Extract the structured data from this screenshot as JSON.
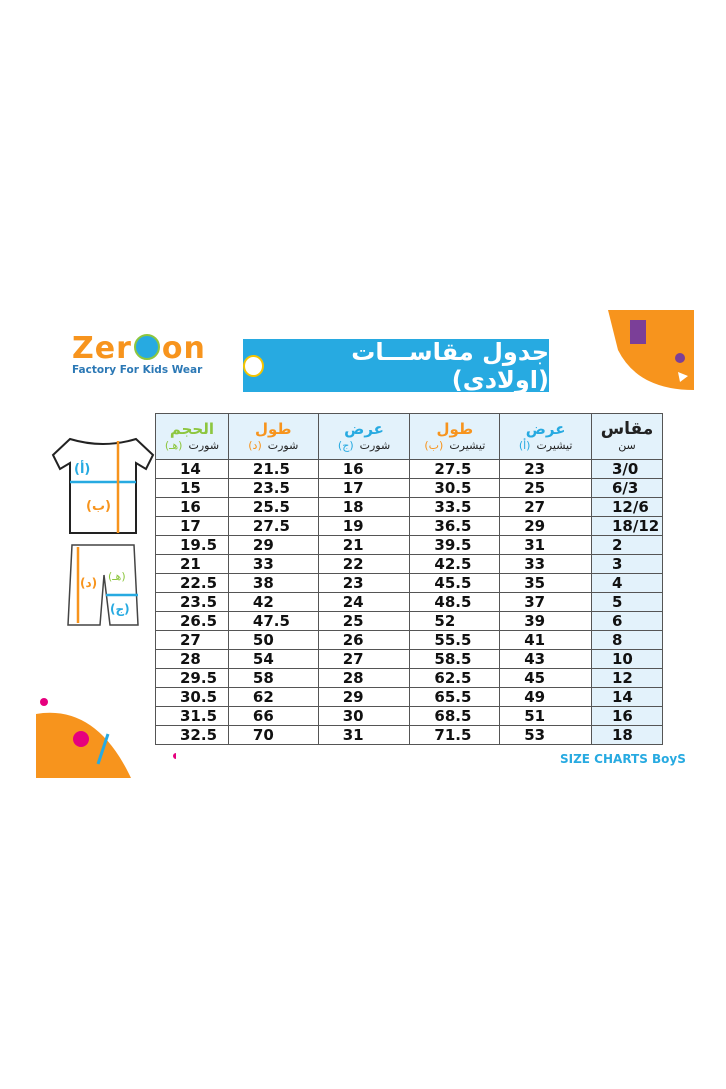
{
  "logo": {
    "name": "Zer",
    "name_end": "on",
    "tagline": "Factory For Kids Wear"
  },
  "title": "جدول مقاســـات (اولادي)",
  "diagram": {
    "shirt_labels": [
      "(أ)",
      "(ب)"
    ],
    "shorts_labels": [
      "(هـ)",
      "(د)",
      "(ج)"
    ]
  },
  "table": {
    "headers": [
      {
        "top": "الحجم",
        "sub": "شورت",
        "mark": "(هـ)",
        "color": "#8dc63f"
      },
      {
        "top": "طول",
        "sub": "شورت",
        "mark": "(د)",
        "color": "#f7941d"
      },
      {
        "top": "عرض",
        "sub": "شورت",
        "mark": "(ج)",
        "color": "#27aae1"
      },
      {
        "top": "طول",
        "sub": "تيشيرت",
        "mark": "(ب)",
        "color": "#f7941d"
      },
      {
        "top": "عرض",
        "sub": "تيشيرت",
        "mark": "(أ)",
        "color": "#27aae1"
      },
      {
        "top": "مقاس",
        "sub": "سن",
        "mark": "",
        "color": "#222222"
      }
    ],
    "rows": [
      [
        "14",
        "21.5",
        "16",
        "27.5",
        "23",
        "3/0"
      ],
      [
        "15",
        "23.5",
        "17",
        "30.5",
        "25",
        "6/3"
      ],
      [
        "16",
        "25.5",
        "18",
        "33.5",
        "27",
        "12/6"
      ],
      [
        "17",
        "27.5",
        "19",
        "36.5",
        "29",
        "18/12"
      ],
      [
        "19.5",
        "29",
        "21",
        "39.5",
        "31",
        "2"
      ],
      [
        "21",
        "33",
        "22",
        "42.5",
        "33",
        "3"
      ],
      [
        "22.5",
        "38",
        "23",
        "45.5",
        "35",
        "4"
      ],
      [
        "23.5",
        "42",
        "24",
        "48.5",
        "37",
        "5"
      ],
      [
        "26.5",
        "47.5",
        "25",
        "52",
        "39",
        "6"
      ],
      [
        "27",
        "50",
        "26",
        "55.5",
        "41",
        "8"
      ],
      [
        "28",
        "54",
        "27",
        "58.5",
        "43",
        "10"
      ],
      [
        "29.5",
        "58",
        "28",
        "62.5",
        "45",
        "12"
      ],
      [
        "30.5",
        "62",
        "29",
        "65.5",
        "49",
        "14"
      ],
      [
        "31.5",
        "66",
        "30",
        "68.5",
        "51",
        "16"
      ],
      [
        "32.5",
        "70",
        "31",
        "71.5",
        "53",
        "18"
      ]
    ]
  },
  "footer": "SIZE CHARTS BoyS"
}
